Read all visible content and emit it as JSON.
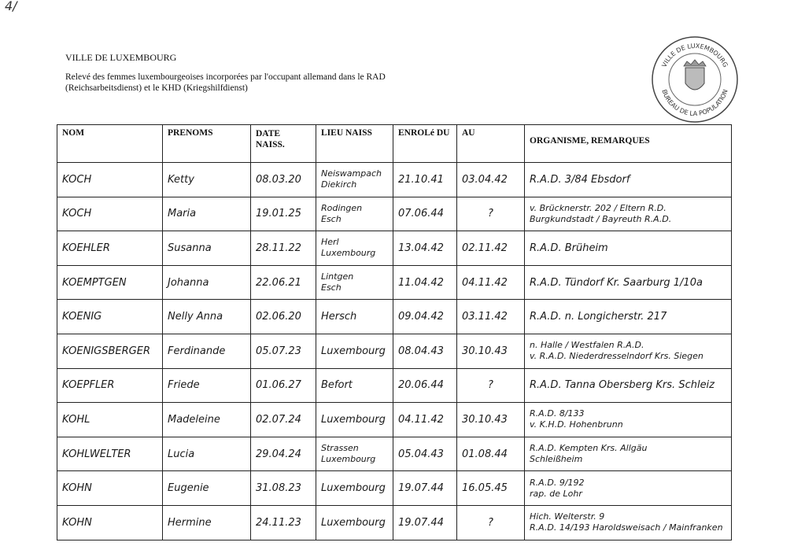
{
  "corner_mark": "4/",
  "header": {
    "city": "VILLE DE LUXEMBOURG",
    "subtitle": "Relevé des femmes luxembourgeoises incorporées par l'occupant allemand dans le RAD (Reichsarbeitsdienst) et le KHD (Kriegshilfdienst)"
  },
  "stamp": {
    "top_text": "VILLE DE LUXEMBOURG",
    "bottom_text": "BUREAU DE LA POPULATION"
  },
  "table": {
    "columns": [
      "NOM",
      "PRENOMS",
      "DATE NAISS.",
      "LIEU NAISS",
      "ENROLé DU",
      "AU",
      "ORGANISME, REMARQUES"
    ],
    "rows": [
      {
        "nom": "KOCH",
        "prenoms": "Ketty",
        "date": "08.03.20",
        "lieu": [
          "Neiswampach",
          "Diekirch"
        ],
        "du": "21.10.41",
        "au": "03.04.42",
        "remarques": [
          "R.A.D. 3/84 Ebsdorf"
        ]
      },
      {
        "nom": "KOCH",
        "prenoms": "Maria",
        "date": "19.01.25",
        "lieu": [
          "Rodingen",
          "Esch"
        ],
        "du": "07.06.44",
        "au": "?",
        "remarques": [
          "v. Brücknerstr. 202 / Eltern R.D.",
          "Burgkundstadt / Bayreuth R.A.D."
        ]
      },
      {
        "nom": "KOEHLER",
        "prenoms": "Susanna",
        "date": "28.11.22",
        "lieu": [
          "Herl",
          "Luxembourg"
        ],
        "du": "13.04.42",
        "au": "02.11.42",
        "remarques": [
          "R.A.D. Brüheim"
        ]
      },
      {
        "nom": "KOEMPTGEN",
        "prenoms": "Johanna",
        "date": "22.06.21",
        "lieu": [
          "Lintgen",
          "Esch"
        ],
        "du": "11.04.42",
        "au": "04.11.42",
        "remarques": [
          "R.A.D. Tündorf Kr. Saarburg 1/10a"
        ]
      },
      {
        "nom": "KOENIG",
        "prenoms": "Nelly Anna",
        "date": "02.06.20",
        "lieu": [
          "Hersch"
        ],
        "du": "09.04.42",
        "au": "03.11.42",
        "remarques": [
          "R.A.D. n. Longicherstr. 217"
        ]
      },
      {
        "nom": "KOENIGSBERGER",
        "prenoms": "Ferdinande",
        "date": "05.07.23",
        "lieu": [
          "Luxembourg"
        ],
        "du": "08.04.43",
        "au": "30.10.43",
        "remarques": [
          "n. Halle / Westfalen R.A.D.",
          "v. R.A.D. Niederdresselndorf Krs. Siegen"
        ]
      },
      {
        "nom": "KOEPFLER",
        "prenoms": "Friede",
        "date": "01.06.27",
        "lieu": [
          "Befort"
        ],
        "du": "20.06.44",
        "au": "?",
        "remarques": [
          "R.A.D. Tanna Obersberg Krs. Schleiz"
        ]
      },
      {
        "nom": "KOHL",
        "prenoms": "Madeleine",
        "date": "02.07.24",
        "lieu": [
          "Luxembourg"
        ],
        "du": "04.11.42",
        "au": "30.10.43",
        "remarques": [
          "R.A.D. 8/133",
          "v. K.H.D. Hohenbrunn"
        ]
      },
      {
        "nom": "KOHLWELTER",
        "prenoms": "Lucia",
        "date": "29.04.24",
        "lieu": [
          "Strassen",
          "Luxembourg"
        ],
        "du": "05.04.43",
        "au": "01.08.44",
        "remarques": [
          "R.A.D. Kempten Krs. Allgäu",
          "Schleißheim"
        ]
      },
      {
        "nom": "KOHN",
        "prenoms": "Eugenie",
        "date": "31.08.23",
        "lieu": [
          "Luxembourg"
        ],
        "du": "19.07.44",
        "au": "16.05.45",
        "remarques": [
          "R.A.D. 9/192",
          "rap. de Lohr"
        ]
      },
      {
        "nom": "KOHN",
        "prenoms": "Hermine",
        "date": "24.11.23",
        "lieu": [
          "Luxembourg"
        ],
        "du": "19.07.44",
        "au": "?",
        "remarques": [
          "Hich. Welterstr. 9",
          "R.A.D. 14/193 Haroldsweisach / Mainfranken"
        ]
      }
    ]
  }
}
